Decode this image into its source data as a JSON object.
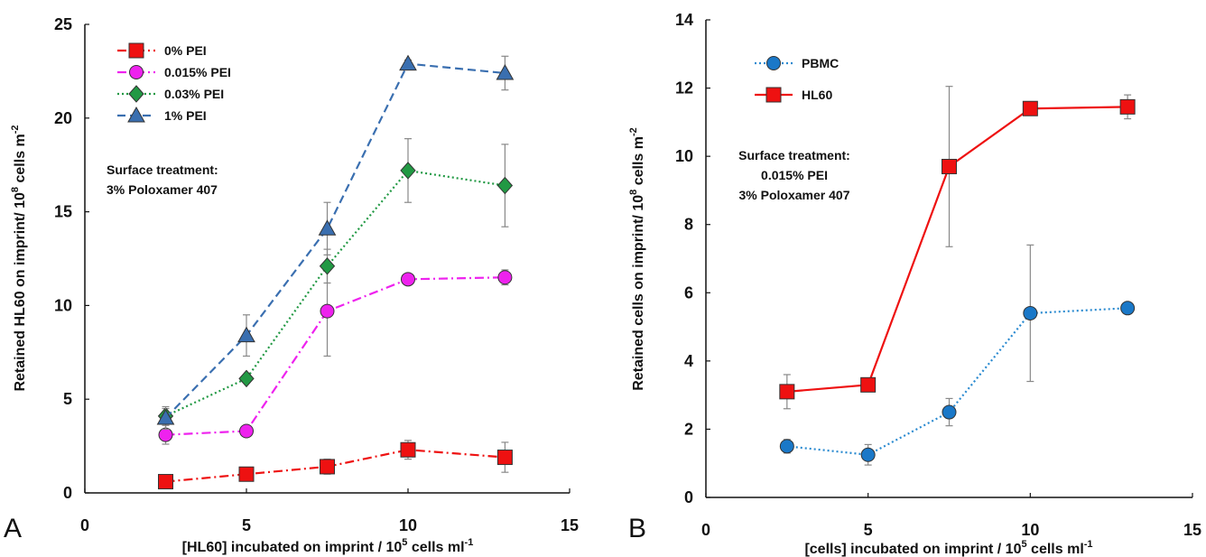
{
  "colors": {
    "red": "#ee1111",
    "magenta": "#ee22ee",
    "green": "#229944",
    "blue": "#3a6fb0",
    "pbmc_fill": "#1a78c8",
    "pbmc_line": "#2a8ad0",
    "axis": "#111111",
    "errorbar": "#888888"
  },
  "chart_data": [
    {
      "panel": "A",
      "type": "line",
      "xlabel_main": "[HL60] incubated on imprint / 10",
      "xlabel_sup": "5",
      "xlabel_tail": " cells ml",
      "xlabel_sup2": "-1",
      "ylabel_main": "Retained HL60 on imprint/ 10",
      "ylabel_sup": "8",
      "ylabel_tail": "  cells m",
      "ylabel_sup2": "-2",
      "xlim": [
        0,
        15
      ],
      "ylim": [
        0,
        25
      ],
      "xticks": [
        "0",
        "5",
        "10",
        "15"
      ],
      "yticks": [
        "0",
        "5",
        "10",
        "15",
        "20",
        "25"
      ],
      "legend_position": "top-left",
      "annotation_lines": [
        "Surface treatment:",
        "3% Poloxamer 407"
      ],
      "series": [
        {
          "name": "0% PEI",
          "marker": "square",
          "color": "red",
          "dash": "dashdot",
          "x": [
            2.5,
            5,
            7.5,
            10,
            13
          ],
          "y": [
            0.6,
            1.0,
            1.4,
            2.3,
            1.9
          ],
          "err": [
            0.2,
            0.3,
            0.4,
            0.5,
            0.8
          ]
        },
        {
          "name": "0.015% PEI",
          "marker": "circle",
          "color": "magenta",
          "dash": "dashdot",
          "x": [
            2.5,
            5,
            7.5,
            10,
            13
          ],
          "y": [
            3.1,
            3.3,
            9.7,
            11.4,
            11.5
          ],
          "err": [
            0.5,
            0.2,
            2.4,
            0.2,
            0.4
          ]
        },
        {
          "name": "0.03% PEI",
          "marker": "diamond",
          "color": "green",
          "dash": "dotted",
          "x": [
            2.5,
            5,
            7.5,
            10,
            13
          ],
          "y": [
            4.1,
            6.1,
            12.1,
            17.2,
            16.4
          ],
          "err": [
            0.4,
            0.2,
            0.9,
            1.7,
            2.2
          ]
        },
        {
          "name": "1% PEI",
          "marker": "triangle",
          "color": "blue",
          "dash": "dashed",
          "x": [
            2.5,
            5,
            7.5,
            10,
            13
          ],
          "y": [
            4.0,
            8.4,
            14.1,
            22.9,
            22.4
          ],
          "err": [
            0.6,
            1.1,
            1.4,
            0.2,
            0.9
          ]
        }
      ]
    },
    {
      "panel": "B",
      "type": "line",
      "xlabel_main": "[cells] incubated on imprint / 10",
      "xlabel_sup": "5",
      "xlabel_tail": " cells ml",
      "xlabel_sup2": "-1",
      "ylabel_main": "Retained cells on imprint/ 10",
      "ylabel_sup": "8",
      "ylabel_tail": "  cells m",
      "ylabel_sup2": "-2",
      "xlim": [
        0,
        15
      ],
      "ylim": [
        0,
        14
      ],
      "xticks": [
        "0",
        "5",
        "10",
        "15"
      ],
      "yticks": [
        "0",
        "2",
        "4",
        "6",
        "8",
        "10",
        "12",
        "14"
      ],
      "legend_position": "top-left",
      "annotation_lines": [
        "Surface treatment:",
        "0.015% PEI",
        "3% Poloxamer 407"
      ],
      "series": [
        {
          "name": "PBMC",
          "marker": "circle",
          "color": "pbmc_line",
          "dash": "dotted",
          "x": [
            2.5,
            5,
            7.5,
            10,
            13
          ],
          "y": [
            1.5,
            1.25,
            2.5,
            5.4,
            5.55
          ],
          "err": [
            0.2,
            0.3,
            0.4,
            2.0,
            0.1
          ]
        },
        {
          "name": "HL60",
          "marker": "square",
          "color": "red",
          "dash": "solid",
          "x": [
            2.5,
            5,
            7.5,
            10,
            13
          ],
          "y": [
            3.1,
            3.3,
            9.7,
            11.4,
            11.45
          ],
          "err": [
            0.5,
            0.2,
            2.35,
            0.2,
            0.35
          ]
        }
      ]
    }
  ]
}
